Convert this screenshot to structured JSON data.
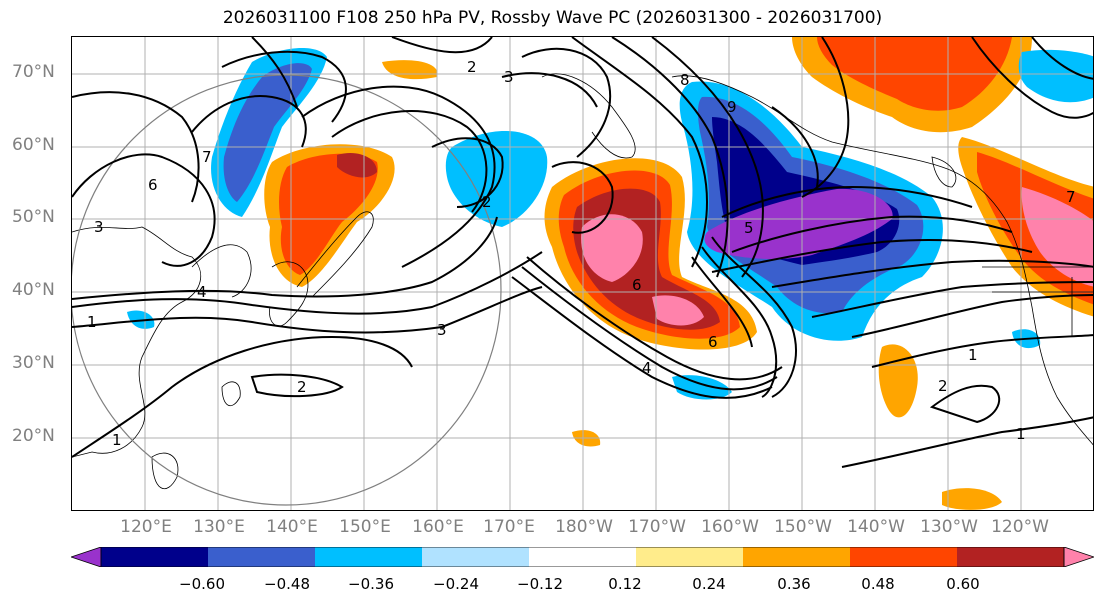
{
  "title": "2026031100 F108 250 hPa PV, Rossby Wave PC (2026031300 - 2026031700)",
  "lat_labels": [
    "70°N",
    "60°N",
    "50°N",
    "40°N",
    "30°N",
    "20°N"
  ],
  "lon_labels": [
    "120°E",
    "130°E",
    "140°E",
    "150°E",
    "160°E",
    "170°E",
    "180°W",
    "170°W",
    "160°W",
    "150°W",
    "140°W",
    "130°W",
    "120°W"
  ],
  "colorbar": {
    "ticks": [
      "−0.60",
      "−0.48",
      "−0.36",
      "−0.24",
      "−0.12",
      "0.12",
      "0.24",
      "0.36",
      "0.48",
      "0.60"
    ],
    "colors": [
      "#9932cc",
      "#00008b",
      "#3a5fcd",
      "#00bfff",
      "#b0e2ff",
      "#ffffff",
      "#ffec8b",
      "#ffa500",
      "#ff4500",
      "#b22222",
      "#ff82ab"
    ],
    "extend": "both"
  },
  "contour_labels": {
    "a": "2",
    "b": "3",
    "c": "6",
    "d": "7",
    "e": "8",
    "f": "9",
    "g": "5",
    "h": "1",
    "i": "4",
    "j": "6",
    "k": "3",
    "l": "2",
    "m": "1",
    "n": "2",
    "o": "1",
    "p": "7",
    "q": "2",
    "r": "3",
    "s": "4",
    "t": "6",
    "u": "1"
  },
  "map": {
    "projection": "cylindrical",
    "extent_lon": [
      110,
      250
    ],
    "extent_lat": [
      10,
      75
    ],
    "gridlines": true
  }
}
